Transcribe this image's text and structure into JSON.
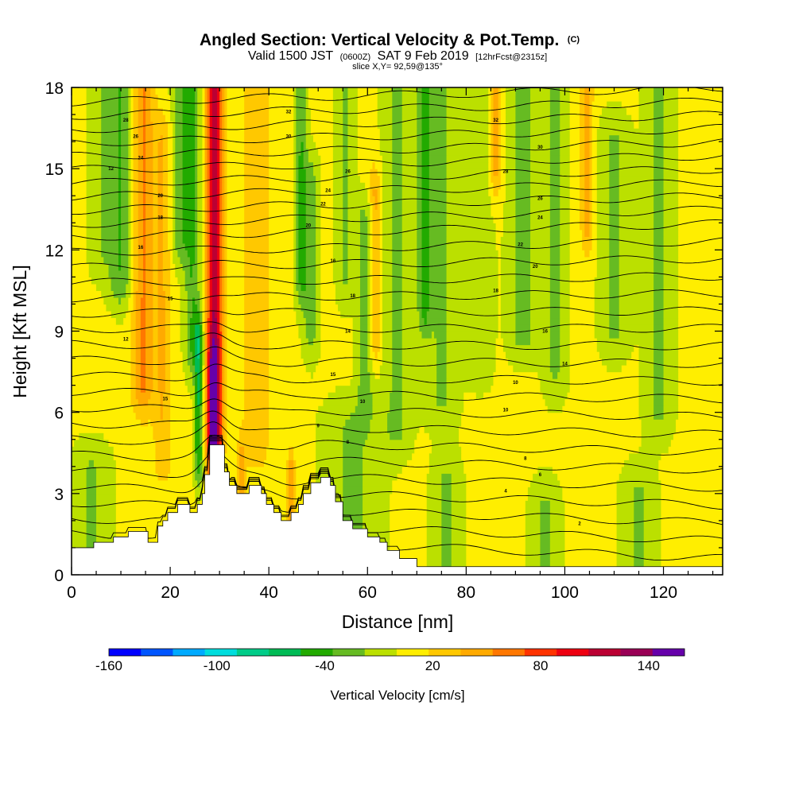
{
  "chart_data": {
    "type": "heatmap",
    "title": "Angled Section: Vertical Velocity & Pot.Temp.",
    "title_unit": "(C)",
    "subtitle_parts": {
      "valid": "Valid 1500 JST",
      "utc": "(0600Z)",
      "date": "SAT 9 Feb 2019",
      "forecast": "[12hrFcst@2315z]"
    },
    "slice_info": "slice X,Y= 92,59@135°",
    "xlabel": "Distance [nm]",
    "ylabel": "Height [Kft MSL]",
    "xlim": [
      0,
      132
    ],
    "ylim": [
      0,
      18
    ],
    "x_ticks": [
      {
        "value": 0,
        "label": "0"
      },
      {
        "value": 20,
        "label": "20"
      },
      {
        "value": 40,
        "label": "40"
      },
      {
        "value": 60,
        "label": "60"
      },
      {
        "value": 80,
        "label": "80"
      },
      {
        "value": 100,
        "label": "100"
      },
      {
        "value": 120,
        "label": "120"
      }
    ],
    "y_ticks": [
      {
        "value": 0,
        "label": "0"
      },
      {
        "value": 3,
        "label": "3"
      },
      {
        "value": 6,
        "label": "6"
      },
      {
        "value": 9,
        "label": "9"
      },
      {
        "value": 12,
        "label": "12"
      },
      {
        "value": 15,
        "label": "15"
      },
      {
        "value": 18,
        "label": "18"
      }
    ],
    "colorbar": {
      "label": "Vertical Velocity [cm/s]",
      "range": [
        -160,
        160
      ],
      "colors": [
        "#0000ff",
        "#0055ff",
        "#00aaff",
        "#00dddd",
        "#00cc88",
        "#00bb55",
        "#22aa00",
        "#66bb22",
        "#bbe000",
        "#ffee00",
        "#ffc800",
        "#ffaa00",
        "#ff7700",
        "#ff3300",
        "#ee0011",
        "#bb0033",
        "#990055",
        "#6600aa"
      ],
      "tick_labels": [
        {
          "value": -160,
          "label": "-160"
        },
        {
          "value": -100,
          "label": "-100"
        },
        {
          "value": -40,
          "label": "-40"
        },
        {
          "value": 20,
          "label": "20"
        },
        {
          "value": 80,
          "label": "80"
        },
        {
          "value": 140,
          "label": "140"
        }
      ]
    },
    "terrain": [
      [
        0,
        1.0
      ],
      [
        4.5,
        1.0
      ],
      [
        4.5,
        1.2
      ],
      [
        8.5,
        1.2
      ],
      [
        8.5,
        1.4
      ],
      [
        11.5,
        1.4
      ],
      [
        11.5,
        1.6
      ],
      [
        15.5,
        1.6
      ],
      [
        15.5,
        1.2
      ],
      [
        17.5,
        1.2
      ],
      [
        17.5,
        1.8
      ],
      [
        18.5,
        1.8
      ],
      [
        18.5,
        2.0
      ],
      [
        19.5,
        2.0
      ],
      [
        19.5,
        2.3
      ],
      [
        21.5,
        2.3
      ],
      [
        21.5,
        2.6
      ],
      [
        24.0,
        2.6
      ],
      [
        24.0,
        2.3
      ],
      [
        25.5,
        2.3
      ],
      [
        25.5,
        2.6
      ],
      [
        26.5,
        2.6
      ],
      [
        26.5,
        3.0
      ],
      [
        27.0,
        3.0
      ],
      [
        27.0,
        3.7
      ],
      [
        28.0,
        3.7
      ],
      [
        28.0,
        4.8
      ],
      [
        31.0,
        4.8
      ],
      [
        31.0,
        3.8
      ],
      [
        32.0,
        3.8
      ],
      [
        32.0,
        3.3
      ],
      [
        33.5,
        3.3
      ],
      [
        33.5,
        3.0
      ],
      [
        36.0,
        3.0
      ],
      [
        36.0,
        3.3
      ],
      [
        38.5,
        3.3
      ],
      [
        38.5,
        3.0
      ],
      [
        39.5,
        3.0
      ],
      [
        39.5,
        2.6
      ],
      [
        41.0,
        2.6
      ],
      [
        41.0,
        2.3
      ],
      [
        42.5,
        2.3
      ],
      [
        42.5,
        2.0
      ],
      [
        44.5,
        2.0
      ],
      [
        44.5,
        2.3
      ],
      [
        46.0,
        2.3
      ],
      [
        46.0,
        2.6
      ],
      [
        47.0,
        2.6
      ],
      [
        47.0,
        3.0
      ],
      [
        48.5,
        3.0
      ],
      [
        48.5,
        3.4
      ],
      [
        50.5,
        3.4
      ],
      [
        50.5,
        3.6
      ],
      [
        52.5,
        3.6
      ],
      [
        52.5,
        3.3
      ],
      [
        53.5,
        3.3
      ],
      [
        53.5,
        2.7
      ],
      [
        55.0,
        2.7
      ],
      [
        55.0,
        2.0
      ],
      [
        57.0,
        2.0
      ],
      [
        57.0,
        1.7
      ],
      [
        60.0,
        1.7
      ],
      [
        60.0,
        1.4
      ],
      [
        62.5,
        1.4
      ],
      [
        62.5,
        1.2
      ],
      [
        64.0,
        1.2
      ],
      [
        64.0,
        0.9
      ],
      [
        66.5,
        0.9
      ],
      [
        66.5,
        0.6
      ],
      [
        70.0,
        0.6
      ],
      [
        70.0,
        0.3
      ],
      [
        132,
        0.3
      ]
    ],
    "w_features": [
      {
        "x": 29.0,
        "z0": 5.0,
        "z1": 18.0,
        "w": 1.6,
        "v": 120
      },
      {
        "x": 28.6,
        "z0": 4.5,
        "z1": 7.5,
        "w": 1.0,
        "v": 60
      },
      {
        "x": 25.8,
        "z0": 4.5,
        "z1": 8.5,
        "w": 0.9,
        "v": -60
      },
      {
        "x": 24.5,
        "z0": 8.5,
        "z1": 18.0,
        "w": 1.6,
        "v": -40
      },
      {
        "x": 22.0,
        "z0": 12.5,
        "z1": 18.0,
        "w": 1.8,
        "v": -35
      },
      {
        "x": 14.5,
        "z0": 7.0,
        "z1": 18.0,
        "w": 2.2,
        "v": 50
      },
      {
        "x": 10.0,
        "z0": 11.0,
        "z1": 18.0,
        "w": 2.4,
        "v": -40
      },
      {
        "x": 6.0,
        "z0": 12.0,
        "z1": 18.0,
        "w": 2.5,
        "v": -20
      },
      {
        "x": 18.5,
        "z0": 4.5,
        "z1": 16.0,
        "w": 1.8,
        "v": 30
      },
      {
        "x": 37.5,
        "z0": 5.0,
        "z1": 18.0,
        "w": 2.5,
        "v": 30
      },
      {
        "x": 46.5,
        "z0": 11.0,
        "z1": 18.0,
        "w": 1.2,
        "v": -40
      },
      {
        "x": 48.5,
        "z0": 9.0,
        "z1": 14.5,
        "w": 1.6,
        "v": -30
      },
      {
        "x": 55.5,
        "z0": 11.0,
        "z1": 18.0,
        "w": 1.8,
        "v": -25
      },
      {
        "x": 59.5,
        "z0": 7.0,
        "z1": 13.0,
        "w": 1.7,
        "v": -30
      },
      {
        "x": 61.5,
        "z0": 9.0,
        "z1": 14.0,
        "w": 1.2,
        "v": 40
      },
      {
        "x": 66.0,
        "z0": 5.5,
        "z1": 18.0,
        "w": 3.0,
        "v": -25
      },
      {
        "x": 71.5,
        "z0": 10.0,
        "z1": 18.0,
        "w": 1.3,
        "v": -40
      },
      {
        "x": 75.0,
        "z0": 6.5,
        "z1": 18.0,
        "w": 3.5,
        "v": -25
      },
      {
        "x": 83.0,
        "z0": 8.0,
        "z1": 18.0,
        "w": 2.5,
        "v": -20
      },
      {
        "x": 86.0,
        "z0": 15.0,
        "z1": 18.0,
        "w": 1.2,
        "v": 40
      },
      {
        "x": 91.5,
        "z0": 9.0,
        "z1": 18.0,
        "w": 3.0,
        "v": -30
      },
      {
        "x": 98.0,
        "z0": 7.5,
        "z1": 18.0,
        "w": 2.5,
        "v": -25
      },
      {
        "x": 104.5,
        "z0": 13.0,
        "z1": 18.0,
        "w": 1.2,
        "v": 40
      },
      {
        "x": 110.0,
        "z0": 9.0,
        "z1": 16.0,
        "w": 3.0,
        "v": -25
      },
      {
        "x": 119.0,
        "z0": 6.0,
        "z1": 18.0,
        "w": 3.0,
        "v": -25
      },
      {
        "x": 57.0,
        "z0": 0.3,
        "z1": 5.5,
        "w": 6.0,
        "v": -25
      },
      {
        "x": 76.0,
        "z0": 0.3,
        "z1": 3.5,
        "w": 3.0,
        "v": -25
      },
      {
        "x": 96.0,
        "z0": 0.3,
        "z1": 2.5,
        "w": 3.0,
        "v": -25
      },
      {
        "x": 115.0,
        "z0": 0.3,
        "z1": 3.0,
        "w": 3.5,
        "v": -25
      },
      {
        "x": 4.0,
        "z0": 1.0,
        "z1": 3.8,
        "w": 4.0,
        "v": -25
      },
      {
        "x": 34.5,
        "z0": 3.0,
        "z1": 4.0,
        "w": 0.8,
        "v": 40
      },
      {
        "x": 44.5,
        "z0": 2.0,
        "z1": 3.5,
        "w": 0.8,
        "v": 45
      }
    ],
    "theta_contours": {
      "base_z": [
        1.3,
        1.9,
        2.5,
        3.1,
        3.7,
        4.3,
        4.9,
        5.5,
        6.1,
        6.7,
        7.3,
        7.9,
        8.5,
        9.1,
        9.7,
        10.3,
        10.9,
        11.5,
        12.1,
        12.7,
        13.2,
        13.7,
        14.2,
        14.7,
        15.2,
        15.7,
        16.2,
        16.7,
        17.2,
        17.7
      ],
      "labels": [
        {
          "x": 103,
          "z": 1.9,
          "text": "2"
        },
        {
          "x": 88,
          "z": 3.1,
          "text": "4"
        },
        {
          "x": 95,
          "z": 3.7,
          "text": "6"
        },
        {
          "x": 92,
          "z": 4.3,
          "text": "8"
        },
        {
          "x": 56,
          "z": 4.9,
          "text": "8"
        },
        {
          "x": 50,
          "z": 5.5,
          "text": "9"
        },
        {
          "x": 88,
          "z": 6.1,
          "text": "10"
        },
        {
          "x": 59,
          "z": 6.4,
          "text": "10"
        },
        {
          "x": 19,
          "z": 6.5,
          "text": "15"
        },
        {
          "x": 90,
          "z": 7.1,
          "text": "10"
        },
        {
          "x": 53,
          "z": 7.4,
          "text": "15"
        },
        {
          "x": 100,
          "z": 7.8,
          "text": "14"
        },
        {
          "x": 11,
          "z": 8.7,
          "text": "12"
        },
        {
          "x": 56,
          "z": 9.0,
          "text": "14"
        },
        {
          "x": 96,
          "z": 9.0,
          "text": "16"
        },
        {
          "x": 20,
          "z": 10.2,
          "text": "15"
        },
        {
          "x": 57,
          "z": 10.3,
          "text": "18"
        },
        {
          "x": 86,
          "z": 10.5,
          "text": "18"
        },
        {
          "x": 53,
          "z": 11.6,
          "text": "16"
        },
        {
          "x": 94,
          "z": 11.4,
          "text": "20"
        },
        {
          "x": 14,
          "z": 12.1,
          "text": "16"
        },
        {
          "x": 91,
          "z": 12.2,
          "text": "22"
        },
        {
          "x": 48,
          "z": 12.9,
          "text": "20"
        },
        {
          "x": 95,
          "z": 13.2,
          "text": "24"
        },
        {
          "x": 18,
          "z": 13.2,
          "text": "18"
        },
        {
          "x": 51,
          "z": 13.7,
          "text": "22"
        },
        {
          "x": 95,
          "z": 13.9,
          "text": "26"
        },
        {
          "x": 52,
          "z": 14.2,
          "text": "24"
        },
        {
          "x": 18,
          "z": 14.0,
          "text": "20"
        },
        {
          "x": 8,
          "z": 15.0,
          "text": "12"
        },
        {
          "x": 56,
          "z": 14.9,
          "text": "26"
        },
        {
          "x": 88,
          "z": 14.9,
          "text": "28"
        },
        {
          "x": 14,
          "z": 15.4,
          "text": "24"
        },
        {
          "x": 95,
          "z": 15.8,
          "text": "30"
        },
        {
          "x": 13,
          "z": 16.2,
          "text": "26"
        },
        {
          "x": 44,
          "z": 16.2,
          "text": "30"
        },
        {
          "x": 11,
          "z": 16.8,
          "text": "28"
        },
        {
          "x": 86,
          "z": 16.8,
          "text": "32"
        },
        {
          "x": 44,
          "z": 17.1,
          "text": "32"
        }
      ]
    }
  }
}
